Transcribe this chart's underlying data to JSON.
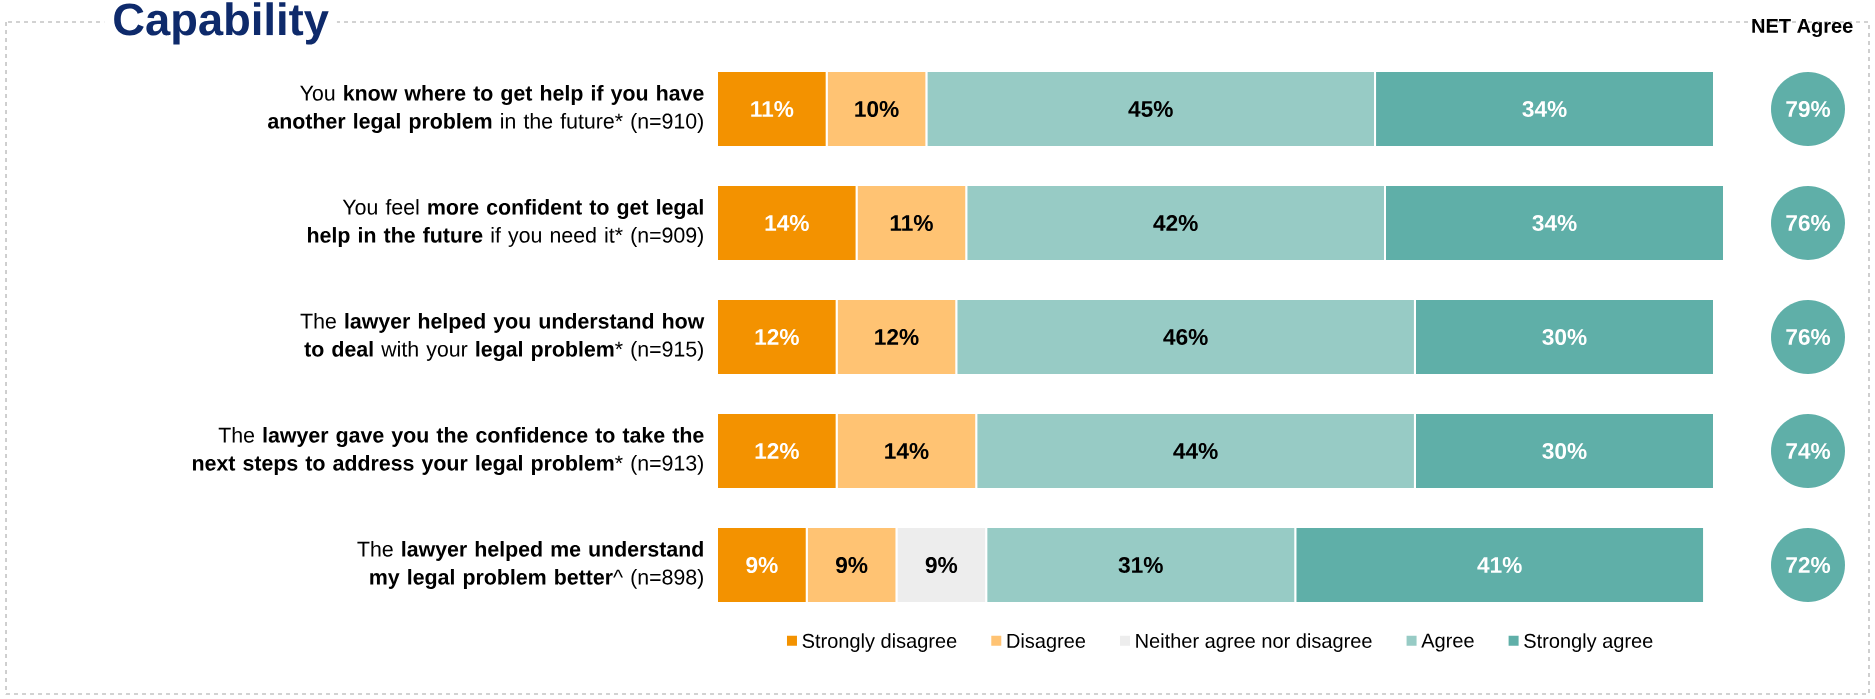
{
  "chart_data": {
    "type": "bar",
    "orientation": "horizontal",
    "stacked": true,
    "title": "Capability",
    "categories": [
      "You **know where to get help if you have another legal problem** in the future* (n=910)",
      "You feel **more confident to get legal help in the future** if you need it* (n=909)",
      "The **lawyer helped you understand how to deal** with your **legal problem*** (n=915)",
      "The **lawyer gave you the confidence to take the next steps to address your legal problem*** (n=913)",
      "The **lawyer helped me understand my legal problem better**^ (n=898)"
    ],
    "series": [
      {
        "name": "Strongly disagree",
        "color": "#f39200",
        "values": [
          11,
          14,
          12,
          12,
          9
        ],
        "value_labels": [
          "11%",
          "14%",
          "12%",
          "12%",
          "9%"
        ]
      },
      {
        "name": "Disagree",
        "color": "#ffc373",
        "values": [
          10,
          11,
          12,
          14,
          9
        ],
        "value_labels": [
          "10%",
          "11%",
          "12%",
          "14%",
          "9%"
        ]
      },
      {
        "name": "Neither agree nor disagree",
        "color": "#ededed",
        "values": [
          null,
          null,
          null,
          null,
          9
        ],
        "value_labels": [
          null,
          null,
          null,
          null,
          "9%"
        ]
      },
      {
        "name": "Agree",
        "color": "#97cbc5",
        "values": [
          45,
          42,
          46,
          44,
          31
        ],
        "value_labels": [
          "45%",
          "42%",
          "46%",
          "44%",
          "31%"
        ]
      },
      {
        "name": "Strongly agree",
        "color": "#5fafa8",
        "values": [
          34,
          34,
          30,
          30,
          41
        ],
        "value_labels": [
          "34%",
          "34%",
          "30%",
          "30%",
          "41%"
        ]
      }
    ],
    "annotations": [
      "NET Agree",
      "79%",
      "76%",
      "76%",
      "74%",
      "72%"
    ],
    "legend": "bottom",
    "tick_labels": "y"
  }
}
